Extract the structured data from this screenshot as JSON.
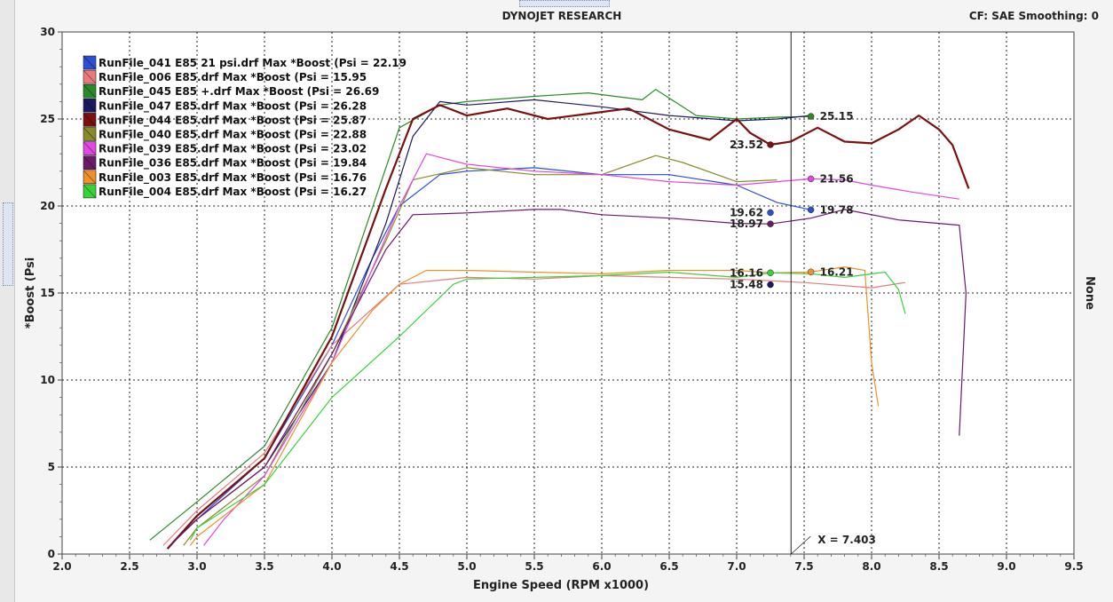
{
  "header": {
    "title": "DYNOJET RESEARCH",
    "settings": "CF: SAE  Smoothing: 0"
  },
  "right_axis_label": "None",
  "cursor_label": "X = 7.403",
  "chart_data": {
    "type": "line",
    "title": "DYNOJET RESEARCH",
    "xlabel": "Engine Speed (RPM x1000)",
    "ylabel": "*Boost (Psi",
    "xlim": [
      2.0,
      9.5
    ],
    "ylim": [
      0,
      30
    ],
    "xticks": [
      "2.0",
      "2.5",
      "3.0",
      "3.5",
      "4.0",
      "4.5",
      "5.0",
      "5.5",
      "6.0",
      "6.5",
      "7.0",
      "7.5",
      "8.0",
      "8.5",
      "9.0",
      "9.5"
    ],
    "yticks": [
      "0",
      "5",
      "10",
      "15",
      "20",
      "25",
      "30"
    ],
    "grid": true,
    "legend_position": "top-left",
    "cursor_x": 7.403,
    "series": [
      {
        "name": "RunFile_041 E85 21 psi.drf Max *Boost (Psi = 22.19",
        "color": "#2a4fd4",
        "x": [
          2.8,
          3.0,
          3.5,
          4.0,
          4.3,
          4.5,
          4.8,
          5.0,
          5.5,
          6.0,
          6.5,
          7.0,
          7.3,
          7.55,
          7.8,
          8.1
        ],
        "y": [
          0.5,
          2,
          5.5,
          12,
          17,
          20,
          21.8,
          22.0,
          22.2,
          21.8,
          21.8,
          21.2,
          20.2,
          19.78,
          null,
          null
        ]
      },
      {
        "name": "RunFile_006 E85.drf Max *Boost (Psi = 15.95",
        "color": "#e87a7a",
        "x": [
          2.75,
          3.0,
          3.5,
          4.0,
          4.5,
          5.0,
          5.5,
          6.0,
          6.5,
          7.0,
          7.5,
          8.0,
          8.25
        ],
        "y": [
          0.5,
          2.5,
          5.8,
          12,
          15.5,
          15.9,
          15.8,
          16.0,
          15.9,
          15.8,
          15.6,
          15.3,
          15.6
        ]
      },
      {
        "name": "RunFile_045 E85 +.drf Max *Boost (Psi = 26.69",
        "color": "#2a8a2a",
        "x": [
          2.65,
          3.0,
          3.5,
          4.0,
          4.5,
          4.8,
          5.0,
          5.5,
          5.9,
          6.3,
          6.4,
          6.7,
          7.0,
          7.3,
          7.55
        ],
        "y": [
          0.8,
          3,
          6.2,
          13,
          24.5,
          25.8,
          26.0,
          26.3,
          26.5,
          26.1,
          26.7,
          25.2,
          25.0,
          25.1,
          25.15
        ]
      },
      {
        "name": "RunFile_047 E85.drf Max *Boost (Psi = 26.28",
        "color": "#1a1a60",
        "x": [
          2.8,
          3.0,
          3.5,
          4.0,
          4.4,
          4.6,
          4.8,
          5.0,
          5.5,
          6.0,
          6.5,
          7.0,
          7.3,
          7.55
        ],
        "y": [
          0.5,
          2,
          5,
          11,
          19,
          24,
          26.0,
          25.8,
          26.1,
          25.7,
          25.2,
          24.9,
          25.0,
          25.2
        ]
      },
      {
        "name": "RunFile_044 E85.drf Max *Boost (Psi = 25.87",
        "color": "#7a1010",
        "x": [
          2.78,
          3.0,
          3.5,
          4.0,
          4.4,
          4.6,
          4.8,
          5.0,
          5.3,
          5.6,
          5.9,
          6.2,
          6.5,
          6.8,
          7.0,
          7.1,
          7.25,
          7.4,
          7.6,
          7.8,
          8.0,
          8.2,
          8.35,
          8.5,
          8.6,
          8.72
        ],
        "y": [
          0.3,
          2.2,
          5.5,
          12.5,
          21,
          25,
          25.8,
          25.2,
          25.6,
          25.0,
          25.3,
          25.6,
          24.4,
          23.8,
          25.0,
          24.2,
          23.52,
          23.7,
          24.5,
          23.7,
          23.6,
          24.4,
          25.2,
          24.4,
          23.5,
          21.0
        ]
      },
      {
        "name": "RunFile_040 E85.drf Max *Boost (Psi = 22.88",
        "color": "#8a8a2a",
        "x": [
          2.9,
          3.0,
          3.5,
          4.0,
          4.4,
          4.6,
          5.0,
          5.5,
          6.0,
          6.4,
          6.6,
          7.0,
          7.3
        ],
        "y": [
          0.5,
          1.5,
          4.5,
          11.5,
          18,
          21.5,
          22.2,
          21.8,
          21.8,
          22.9,
          22.5,
          21.4,
          21.5
        ]
      },
      {
        "name": "RunFile_039 E85.drf Max *Boost (Psi = 23.02",
        "color": "#e048e0",
        "x": [
          3.05,
          3.2,
          3.5,
          4.0,
          4.5,
          4.7,
          5.0,
          5.5,
          6.0,
          6.5,
          7.0,
          7.3,
          7.55,
          7.8,
          8.0,
          8.3,
          8.65
        ],
        "y": [
          0.5,
          2,
          4.5,
          11,
          20,
          23.0,
          22.4,
          22.0,
          21.8,
          21.4,
          21.2,
          21.4,
          21.56,
          21.5,
          21.2,
          20.8,
          20.4
        ]
      },
      {
        "name": "RunFile_036 E85.drf Max *Boost (Psi = 19.84",
        "color": "#6a1a6a",
        "x": [
          2.8,
          3.0,
          3.5,
          4.0,
          4.4,
          4.6,
          5.0,
          5.5,
          5.7,
          6.0,
          6.5,
          7.0,
          7.25,
          7.55,
          7.8,
          8.2,
          8.65,
          8.7,
          8.65
        ],
        "y": [
          0.5,
          2,
          5,
          11.5,
          17.5,
          19.5,
          19.6,
          19.8,
          19.8,
          19.5,
          19.3,
          19.0,
          18.97,
          19.3,
          19.8,
          19.2,
          18.9,
          15,
          6.8
        ]
      },
      {
        "name": "RunFile_003 E85.drf Max *Boost (Psi = 16.76",
        "color": "#f0902a",
        "x": [
          2.95,
          3.0,
          3.5,
          4.0,
          4.3,
          4.5,
          4.7,
          5.0,
          5.5,
          6.0,
          6.5,
          7.0,
          7.25,
          7.55,
          7.8,
          7.95,
          8.0,
          8.05
        ],
        "y": [
          0.5,
          1,
          4,
          11,
          14,
          15.5,
          16.3,
          16.3,
          16.2,
          16.1,
          16.3,
          16.3,
          16.16,
          16.21,
          16.5,
          16.3,
          11,
          8.5
        ]
      },
      {
        "name": "RunFile_004 E85.drf Max *Boost (Psi = 16.27",
        "color": "#3ad23a",
        "x": [
          2.95,
          3.0,
          3.5,
          4.0,
          4.5,
          4.9,
          5.0,
          5.5,
          6.0,
          6.5,
          7.0,
          7.25,
          7.55,
          7.8,
          8.1,
          8.2,
          8.25
        ],
        "y": [
          0.8,
          1.5,
          4,
          9,
          12.5,
          15.5,
          15.8,
          15.9,
          16.0,
          16.2,
          15.9,
          16.16,
          16.1,
          15.9,
          16.2,
          15.2,
          13.8
        ]
      }
    ],
    "annotations": [
      {
        "text": "25.15",
        "x": 7.55,
        "y": 25.15,
        "color": "#2a8a2a",
        "side": "right"
      },
      {
        "text": "23.52",
        "x": 7.25,
        "y": 23.52,
        "color": "#7a1010",
        "side": "left"
      },
      {
        "text": "21.56",
        "x": 7.55,
        "y": 21.56,
        "color": "#e048e0",
        "side": "right"
      },
      {
        "text": "19.62",
        "x": 7.25,
        "y": 19.62,
        "color": "#2a4fd4",
        "side": "left"
      },
      {
        "text": "19.78",
        "x": 7.55,
        "y": 19.78,
        "color": "#2a4fd4",
        "side": "right"
      },
      {
        "text": "18.97",
        "x": 7.25,
        "y": 18.97,
        "color": "#6a1a6a",
        "side": "left"
      },
      {
        "text": "16.16",
        "x": 7.25,
        "y": 16.16,
        "color": "#3ad23a",
        "side": "left"
      },
      {
        "text": "16.21",
        "x": 7.55,
        "y": 16.21,
        "color": "#f0902a",
        "side": "right"
      },
      {
        "text": "15.48",
        "x": 7.25,
        "y": 15.48,
        "color": "#1a1a60",
        "side": "left"
      }
    ]
  }
}
